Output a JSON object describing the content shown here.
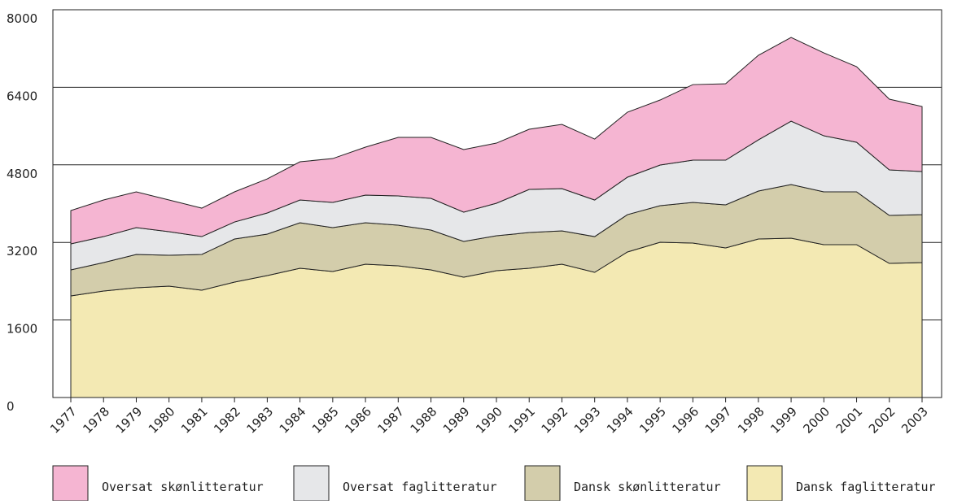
{
  "chart_data": {
    "type": "stacked_area",
    "categories": [
      "1977",
      "1978",
      "1979",
      "1980",
      "1981",
      "1982",
      "1983",
      "1984",
      "1985",
      "1986",
      "1987",
      "1988",
      "1989",
      "1990",
      "1991",
      "1992",
      "1993",
      "1994",
      "1995",
      "1996",
      "1997",
      "1998",
      "1999",
      "2000",
      "2001",
      "2002",
      "2003"
    ],
    "series": [
      {
        "name": "Dansk faglitteratur",
        "color": "#f3e9b3",
        "values": [
          2096,
          2197,
          2264,
          2297,
          2214,
          2381,
          2516,
          2667,
          2600,
          2750,
          2717,
          2633,
          2482,
          2616,
          2667,
          2750,
          2583,
          3002,
          3203,
          3186,
          3086,
          3270,
          3287,
          3153,
          3153,
          2767,
          2784
        ]
      },
      {
        "name": "Dansk skønlitteratur",
        "color": "#d3cdab",
        "values": [
          537,
          587,
          688,
          638,
          738,
          889,
          855,
          939,
          905,
          856,
          838,
          822,
          738,
          721,
          737,
          688,
          737,
          771,
          755,
          839,
          889,
          990,
          1107,
          1090,
          1090,
          990,
          989
        ]
      },
      {
        "name": "Oversat faglitteratur",
        "color": "#e6e7e9",
        "values": [
          537,
          536,
          553,
          486,
          368,
          352,
          436,
          469,
          520,
          570,
          604,
          654,
          604,
          671,
          889,
          872,
          755,
          772,
          838,
          872,
          922,
          1056,
          1308,
          1157,
          1023,
          939,
          889
        ]
      },
      {
        "name": "Oversat skønlitteratur",
        "color": "#f5b5d2",
        "values": [
          687,
          755,
          738,
          654,
          587,
          621,
          704,
          788,
          905,
          989,
          1207,
          1257,
          1291,
          1241,
          1241,
          1325,
          1258,
          1341,
          1342,
          1559,
          1576,
          1744,
          1727,
          1710,
          1559,
          1459,
          1342
        ]
      }
    ],
    "ylim": [
      0,
      8000
    ],
    "yticks": [
      0,
      1600,
      3200,
      4800,
      6400,
      8000
    ],
    "grid": true
  }
}
